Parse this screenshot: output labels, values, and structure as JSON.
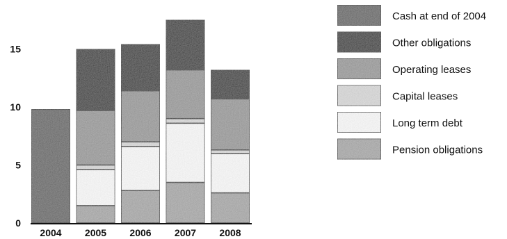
{
  "chart_data": {
    "type": "bar",
    "stacked": true,
    "title": "",
    "xlabel": "",
    "ylabel": "",
    "ylim": [
      0,
      18
    ],
    "yticks": [
      "0",
      "5",
      "10",
      "15"
    ],
    "categories": [
      "2004",
      "2005",
      "2006",
      "2007",
      "2008"
    ],
    "legend_position": "right",
    "series": [
      {
        "name": "Pension obligations",
        "color": "#a9a9a9",
        "values": [
          0,
          1.5,
          2.8,
          3.5,
          2.6
        ]
      },
      {
        "name": "Long term debt",
        "color": "#ffffff",
        "values": [
          0,
          3.1,
          3.8,
          5.1,
          3.4
        ]
      },
      {
        "name": "Capital leases",
        "color": "#dcdcdc",
        "values": [
          0,
          0.4,
          0.4,
          0.4,
          0.3
        ]
      },
      {
        "name": "Operating leases",
        "color": "#9a9a9a",
        "values": [
          0,
          4.7,
          4.4,
          4.2,
          4.4
        ]
      },
      {
        "name": "Other obligations",
        "color": "#050505",
        "values": [
          0,
          5.3,
          4.0,
          4.3,
          2.5
        ]
      },
      {
        "name": "Cash at end of 2004",
        "color": "#5e5e5e",
        "values": [
          9.8,
          0,
          0,
          0,
          0
        ]
      }
    ],
    "legend_order": [
      "Cash at end of 2004",
      "Other obligations",
      "Operating leases",
      "Capital leases",
      "Long term debt",
      "Pension obligations"
    ]
  }
}
